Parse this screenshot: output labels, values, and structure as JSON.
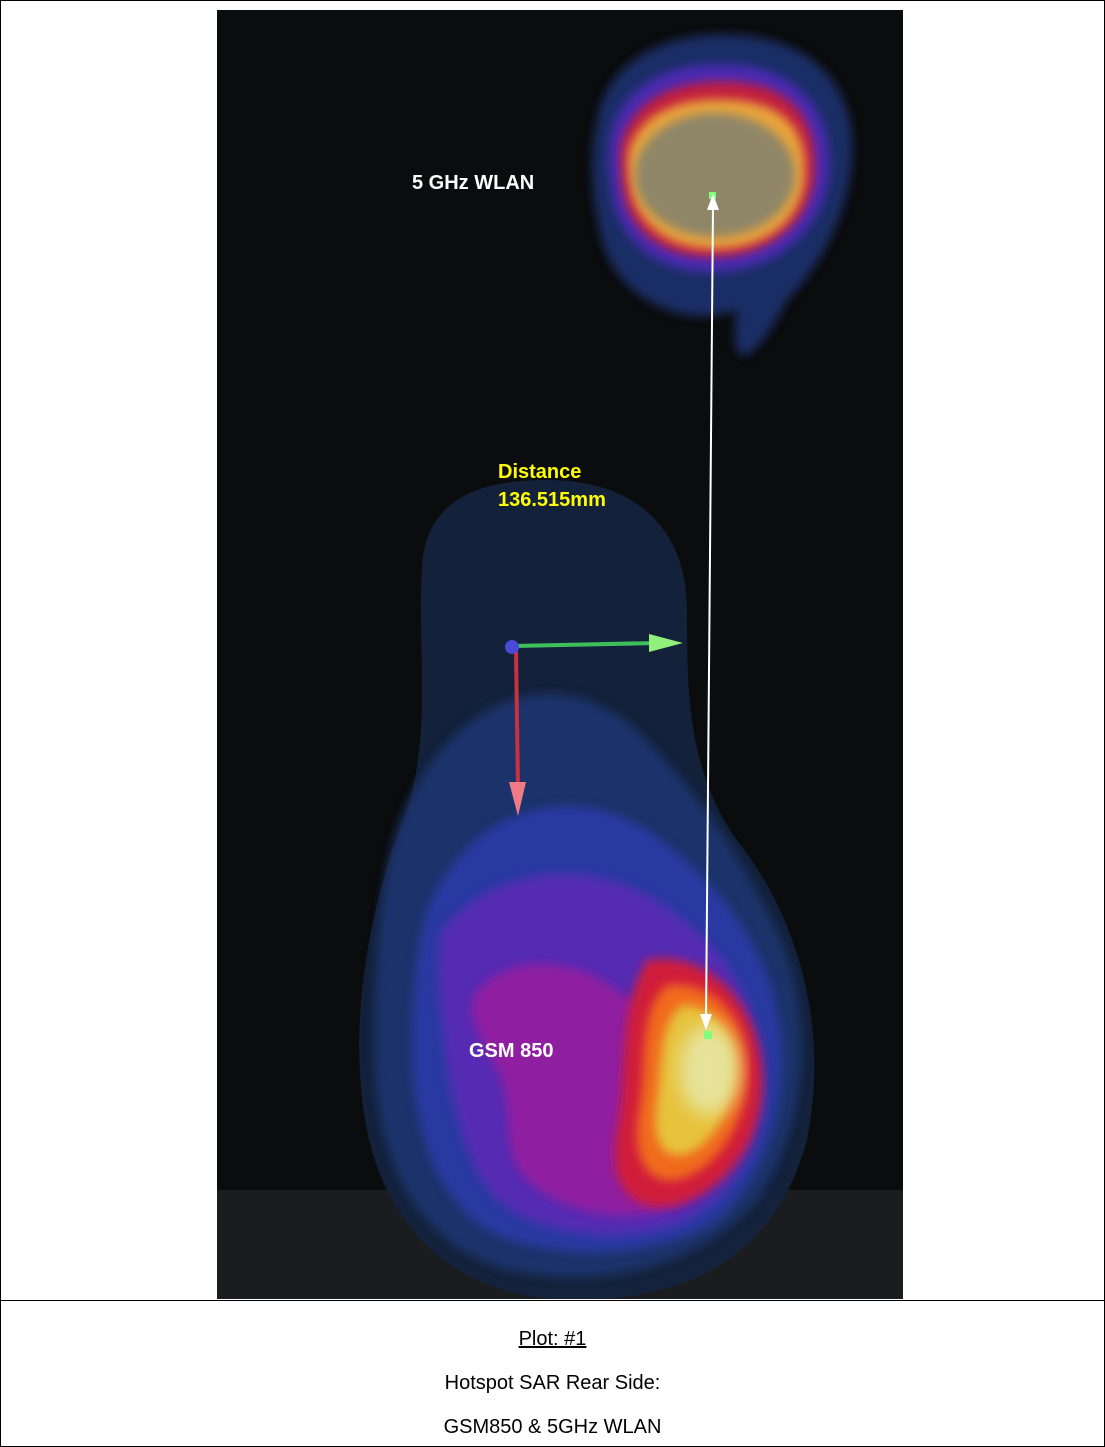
{
  "plot": {
    "labels": {
      "wlan": "5 GHz WLAN",
      "gsm": "GSM 850",
      "distance_title": "Distance",
      "distance_value": "136.515mm"
    },
    "colors": {
      "background": "#0b0c0d",
      "distance_text": "#ffff00",
      "label_text": "#ffffff"
    }
  },
  "caption": {
    "plot_number": "Plot: #1",
    "line1": "Hotspot SAR Rear Side:",
    "line2": "GSM850 & 5GHz WLAN"
  }
}
